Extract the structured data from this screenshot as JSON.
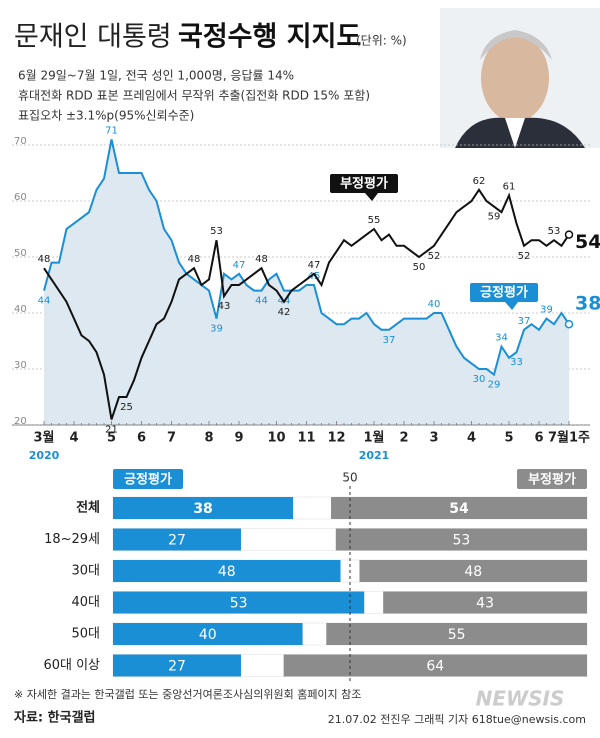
{
  "header": {
    "title_light": "문재인 대통령",
    "title_bold": "국정수행 지지도",
    "unit": "(단위: %)",
    "notes": [
      "6월 29일~7월 1일, 전국 성인 1,000명, 응답률 14%",
      "휴대전화 RDD 표본 프레임에서 무작위 추출(집전화 RDD 15% 포함)",
      "표집오차 ±3.1%p(95%신뢰수준)"
    ]
  },
  "chart_data": [
    {
      "type": "line",
      "categories": [
        "3월",
        null,
        null,
        null,
        "4",
        null,
        null,
        null,
        null,
        "5",
        null,
        null,
        null,
        "6",
        null,
        null,
        null,
        "7",
        null,
        null,
        null,
        null,
        "8",
        null,
        null,
        null,
        "9",
        null,
        null,
        null,
        null,
        "10",
        null,
        null,
        null,
        "11",
        null,
        null,
        null,
        "12",
        null,
        null,
        null,
        null,
        "1월",
        null,
        null,
        null,
        "2",
        null,
        null,
        null,
        "3",
        null,
        null,
        null,
        null,
        "4",
        null,
        null,
        null,
        null,
        "5",
        null,
        null,
        null,
        "6",
        null,
        null,
        null,
        "7월1주"
      ],
      "year_labels": [
        "2020",
        "2021"
      ],
      "ylim": [
        20,
        70
      ],
      "yticks": [
        20,
        30,
        40,
        50,
        60,
        70
      ],
      "grid": true,
      "series": [
        {
          "name": "긍정평가",
          "color": "#1a8fd6",
          "values": [
            44,
            49,
            49,
            55,
            56,
            57,
            58,
            62,
            64,
            71,
            65,
            65,
            65,
            65,
            62,
            60,
            55,
            53,
            49,
            47,
            46,
            45,
            44,
            39,
            47,
            46,
            47,
            45,
            44,
            44,
            46,
            47,
            44,
            44,
            44,
            45,
            45,
            40,
            39,
            38,
            38,
            39,
            39,
            40,
            38,
            37,
            37,
            38,
            39,
            39,
            39,
            39,
            40,
            40,
            37,
            34,
            32,
            31,
            30,
            30,
            29,
            34,
            32,
            33,
            37,
            38,
            37,
            39,
            38,
            40,
            38
          ]
        },
        {
          "name": "부정평가",
          "color": "#111111",
          "values": [
            48,
            46,
            44,
            42,
            39,
            36,
            35,
            33,
            29,
            21,
            25,
            25,
            28,
            32,
            35,
            38,
            39,
            42,
            46,
            47,
            48,
            45,
            46,
            53,
            43,
            45,
            45,
            46,
            47,
            48,
            45,
            44,
            42,
            44,
            45,
            46,
            47,
            45,
            49,
            51,
            53,
            52,
            53,
            54,
            55,
            53,
            54,
            52,
            52,
            51,
            50,
            51,
            52,
            54,
            56,
            58,
            59,
            60,
            62,
            60,
            59,
            58,
            61,
            56,
            52,
            53,
            53,
            52,
            53,
            52,
            54
          ]
        }
      ]
    },
    {
      "type": "bar",
      "orientation": "horizontal",
      "stacked": true,
      "categories": [
        "전체",
        "18~29세",
        "30대",
        "40대",
        "50대",
        "60대 이상"
      ],
      "xlim": [
        0,
        100
      ],
      "reference": 50,
      "series": [
        {
          "name": "긍정평가",
          "color": "#1a8fd6",
          "values": [
            38,
            27,
            48,
            53,
            40,
            27
          ]
        },
        {
          "name": "부정평가",
          "color": "#8c8c8c",
          "values": [
            54,
            53,
            48,
            43,
            55,
            64
          ]
        }
      ]
    }
  ],
  "footer": {
    "note": "※ 자세한 결과는 한국갤럽 또는 중앙선거여론조사심의위원회 홈페이지 참조",
    "source": "자료: 한국갤럽",
    "credit": "21.07.02 전진우 그래픽 기자 618tue@newsis.com",
    "logo": "NEWSIS"
  }
}
